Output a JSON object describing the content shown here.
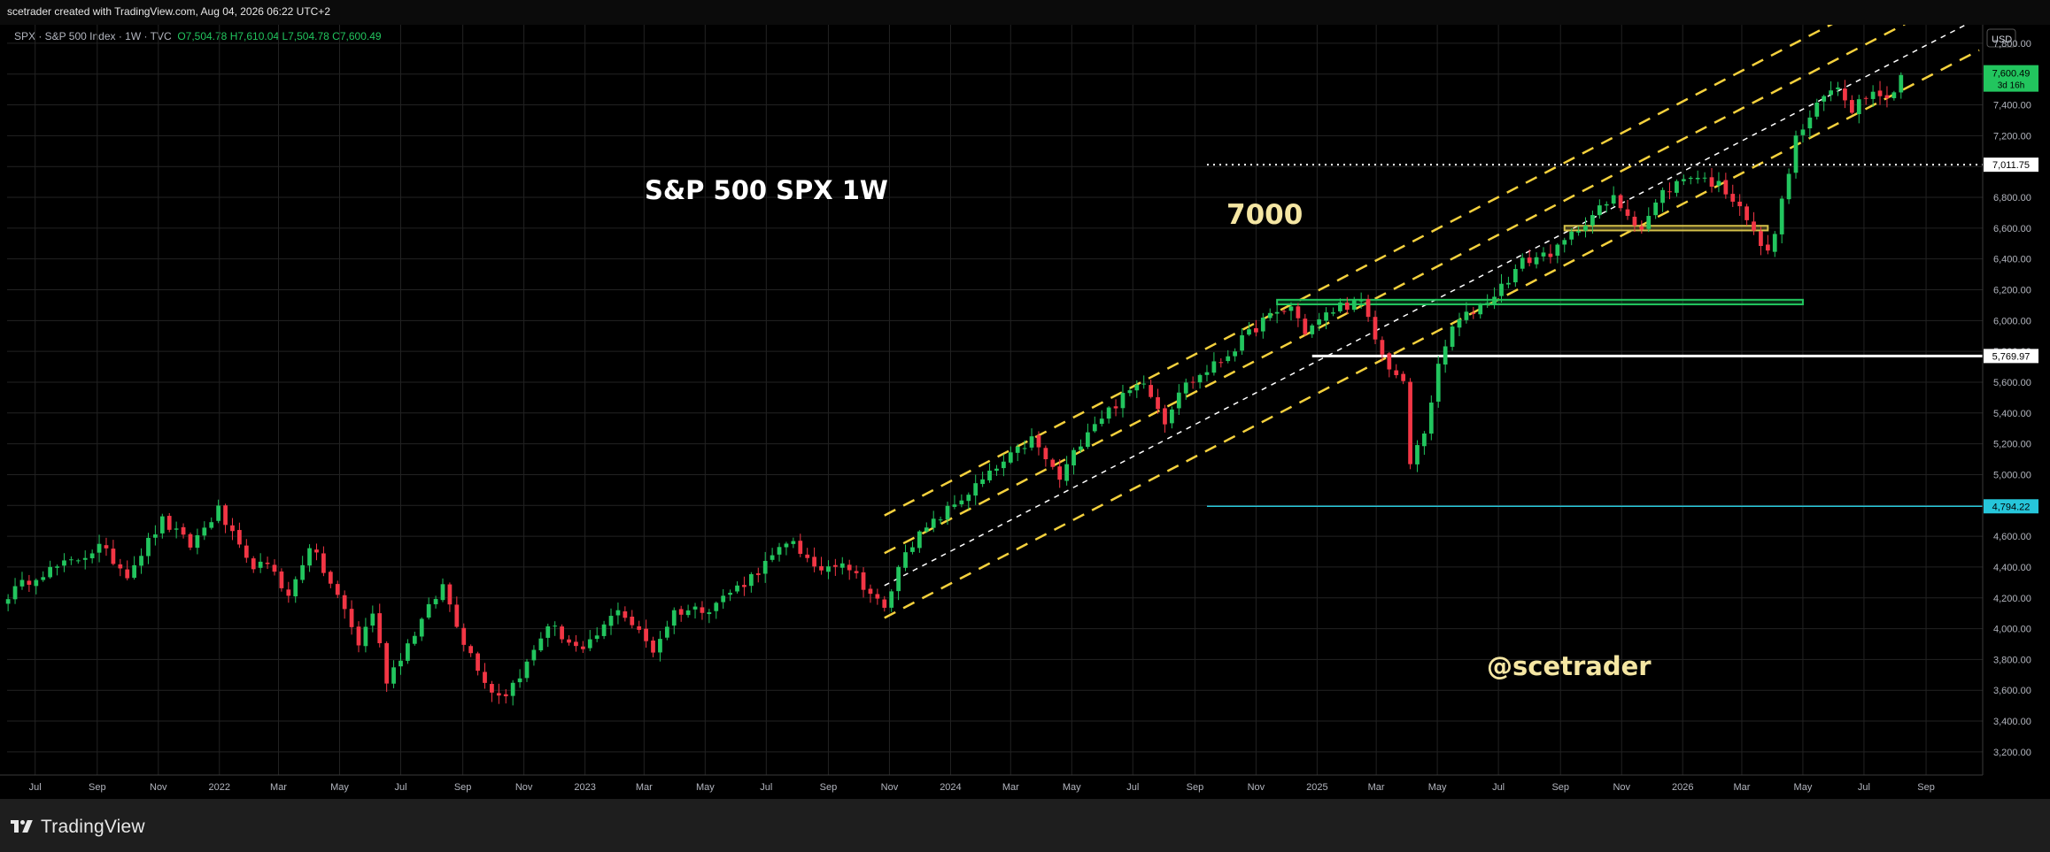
{
  "header": {
    "created_by": "scetrader created with TradingView.com, Aug 04, 2026 06:22 UTC+2",
    "symbol": "SPX · S&P 500 Index · 1W · TVC",
    "ohlc": {
      "o": "O7,504.78",
      "h": "H7,610.04",
      "l": "L7,504.78",
      "c": "C7,600.49"
    }
  },
  "footer": {
    "brand": "TradingView"
  },
  "chart_data": {
    "type": "candlestick",
    "currency": "USD",
    "annotations": {
      "title": "S&P 500 SPX 1W",
      "level_note": "7000",
      "watermark": "@scetrader"
    },
    "y_ticks": [
      3200,
      3400,
      3600,
      3800,
      4000,
      4200,
      4400,
      4600,
      4800,
      5000,
      5200,
      5400,
      5600,
      5800,
      6000,
      6200,
      6400,
      6600,
      6800,
      7000,
      7200,
      7400,
      7600,
      7800
    ],
    "y_tick_labels": [
      "3,200.00",
      "3,400.00",
      "3,600.00",
      "3,800.00",
      "4,000.00",
      "4,200.00",
      "4,400.00",
      "4,600.00",
      "4,800.00",
      "5,000.00",
      "5,200.00",
      "5,400.00",
      "5,600.00",
      "5,800.00",
      "6,000.00",
      "6,200.00",
      "6,400.00",
      "6,600.00",
      "6,800.00",
      "7,000.00",
      "7,200.00",
      "7,400.00",
      "7,600.00",
      "7,800.00"
    ],
    "ylim": [
      3050,
      7920
    ],
    "x_ticks": [
      {
        "t": "2021-07-01",
        "label": "Jul"
      },
      {
        "t": "2021-09-01",
        "label": "Sep"
      },
      {
        "t": "2021-11-01",
        "label": "Nov"
      },
      {
        "t": "2022-01-01",
        "label": "2022"
      },
      {
        "t": "2022-03-01",
        "label": "Mar"
      },
      {
        "t": "2022-05-01",
        "label": "May"
      },
      {
        "t": "2022-07-01",
        "label": "Jul"
      },
      {
        "t": "2022-09-01",
        "label": "Sep"
      },
      {
        "t": "2022-11-01",
        "label": "Nov"
      },
      {
        "t": "2023-01-01",
        "label": "2023"
      },
      {
        "t": "2023-03-01",
        "label": "Mar"
      },
      {
        "t": "2023-05-01",
        "label": "May"
      },
      {
        "t": "2023-07-01",
        "label": "Jul"
      },
      {
        "t": "2023-09-01",
        "label": "Sep"
      },
      {
        "t": "2023-11-01",
        "label": "Nov"
      },
      {
        "t": "2024-01-01",
        "label": "2024"
      },
      {
        "t": "2024-03-01",
        "label": "Mar"
      },
      {
        "t": "2024-05-01",
        "label": "May"
      },
      {
        "t": "2024-07-01",
        "label": "Jul"
      },
      {
        "t": "2024-09-01",
        "label": "Sep"
      },
      {
        "t": "2024-11-01",
        "label": "Nov"
      },
      {
        "t": "2025-01-01",
        "label": "2025"
      },
      {
        "t": "2025-03-01",
        "label": "Mar"
      },
      {
        "t": "2025-05-01",
        "label": "May"
      },
      {
        "t": "2025-07-01",
        "label": "Jul"
      },
      {
        "t": "2025-09-01",
        "label": "Sep"
      },
      {
        "t": "2025-11-01",
        "label": "Nov"
      },
      {
        "t": "2026-01-01",
        "label": "2026"
      },
      {
        "t": "2026-03-01",
        "label": "Mar"
      },
      {
        "t": "2026-05-01",
        "label": "May"
      },
      {
        "t": "2026-07-01",
        "label": "Jul"
      },
      {
        "t": "2026-09-01",
        "label": "Sep"
      }
    ],
    "xlim": [
      "2021-06-03",
      "2026-10-24"
    ],
    "anchors": [
      [
        "2021-06-04",
        4220
      ],
      [
        "2021-07-02",
        4350
      ],
      [
        "2021-08-06",
        4430
      ],
      [
        "2021-09-03",
        4530
      ],
      [
        "2021-10-01",
        4360
      ],
      [
        "2021-11-05",
        4700
      ],
      [
        "2021-12-03",
        4540
      ],
      [
        "2021-12-31",
        4770
      ],
      [
        "2022-01-28",
        4430
      ],
      [
        "2022-02-25",
        4380
      ],
      [
        "2022-03-11",
        4200
      ],
      [
        "2022-04-01",
        4545
      ],
      [
        "2022-05-06",
        4120
      ],
      [
        "2022-05-20",
        3900
      ],
      [
        "2022-06-03",
        4110
      ],
      [
        "2022-06-17",
        3670
      ],
      [
        "2022-07-08",
        3900
      ],
      [
        "2022-08-12",
        4280
      ],
      [
        "2022-09-02",
        3920
      ],
      [
        "2022-09-30",
        3590
      ],
      [
        "2022-10-14",
        3580
      ],
      [
        "2022-11-04",
        3770
      ],
      [
        "2022-11-25",
        4030
      ],
      [
        "2022-12-30",
        3840
      ],
      [
        "2023-01-27",
        4070
      ],
      [
        "2023-02-03",
        4140
      ],
      [
        "2023-03-10",
        3860
      ],
      [
        "2023-03-31",
        4110
      ],
      [
        "2023-05-05",
        4140
      ],
      [
        "2023-06-09",
        4300
      ],
      [
        "2023-07-28",
        4580
      ],
      [
        "2023-08-18",
        4370
      ],
      [
        "2023-09-15",
        4450
      ],
      [
        "2023-10-27",
        4120
      ],
      [
        "2023-11-17",
        4520
      ],
      [
        "2023-12-29",
        4770
      ],
      [
        "2024-02-02",
        4960
      ],
      [
        "2024-03-22",
        5230
      ],
      [
        "2024-04-19",
        4970
      ],
      [
        "2024-05-17",
        5300
      ],
      [
        "2024-07-12",
        5620
      ],
      [
        "2024-08-02",
        5350
      ],
      [
        "2024-08-16",
        5550
      ],
      [
        "2024-09-27",
        5740
      ],
      [
        "2024-11-08",
        6000
      ],
      [
        "2024-12-06",
        6090
      ],
      [
        "2024-12-20",
        5930
      ],
      [
        "2025-01-24",
        6100
      ],
      [
        "2025-02-14",
        6110
      ],
      [
        "2025-03-07",
        5770
      ],
      [
        "2025-03-28",
        5580
      ],
      [
        "2025-04-04",
        5070
      ],
      [
        "2025-04-18",
        5280
      ],
      [
        "2025-05-02",
        5690
      ],
      [
        "2025-05-16",
        5960
      ],
      [
        "2025-06-27",
        6170
      ],
      [
        "2025-07-25",
        6380
      ],
      [
        "2025-08-29",
        6460
      ],
      [
        "2025-09-26",
        6650
      ],
      [
        "2025-10-24",
        6790
      ],
      [
        "2025-11-21",
        6600
      ],
      [
        "2025-12-12",
        6830
      ],
      [
        "2026-01-09",
        6950
      ],
      [
        "2026-02-06",
        6880
      ],
      [
        "2026-02-27",
        6760
      ],
      [
        "2026-03-13",
        6560
      ],
      [
        "2026-03-27",
        6430
      ],
      [
        "2026-04-10",
        6760
      ],
      [
        "2026-04-24",
        7180
      ],
      [
        "2026-05-22",
        7450
      ],
      [
        "2026-06-05",
        7520
      ],
      [
        "2026-06-19",
        7380
      ],
      [
        "2026-07-10",
        7520
      ],
      [
        "2026-07-24",
        7430
      ],
      [
        "2026-08-07",
        7600
      ]
    ],
    "channel": {
      "start": "2023-10-27",
      "end": "2026-10-24",
      "mid_start": 4280,
      "mid_end": 7965,
      "offset": 210,
      "upper_extra_offset": 455
    },
    "levels": [
      {
        "name": "7000-level",
        "value": 7011.75,
        "label": "7,011.75",
        "from": "2024-09-13",
        "style": "dotted",
        "color": "#ffffff"
      },
      {
        "name": "support-level",
        "value": 5769.97,
        "label": "5,769.97",
        "from": "2024-12-27",
        "style": "solid",
        "color": "#ffffff"
      },
      {
        "name": "cyan-level",
        "value": 4794.22,
        "label": "4,794.22",
        "from": "2024-09-13",
        "style": "solid",
        "color": "#26c6da"
      }
    ],
    "boxes": [
      {
        "name": "green-zone",
        "from": "2024-11-22",
        "to": "2026-05-01",
        "low": 6105,
        "high": 6135,
        "color": "#22c55e"
      },
      {
        "name": "yellow-zone",
        "from": "2025-09-05",
        "to": "2026-03-27",
        "low": 6585,
        "high": 6615,
        "color": "#d4c04a"
      }
    ],
    "last_price": {
      "value": 7600.49,
      "label": "7,600.49",
      "countdown": "3d 16h"
    },
    "colors": {
      "up": "#22c55e",
      "down": "#f23645",
      "channel": "#f5d13d",
      "mid": "#ffffff"
    }
  }
}
